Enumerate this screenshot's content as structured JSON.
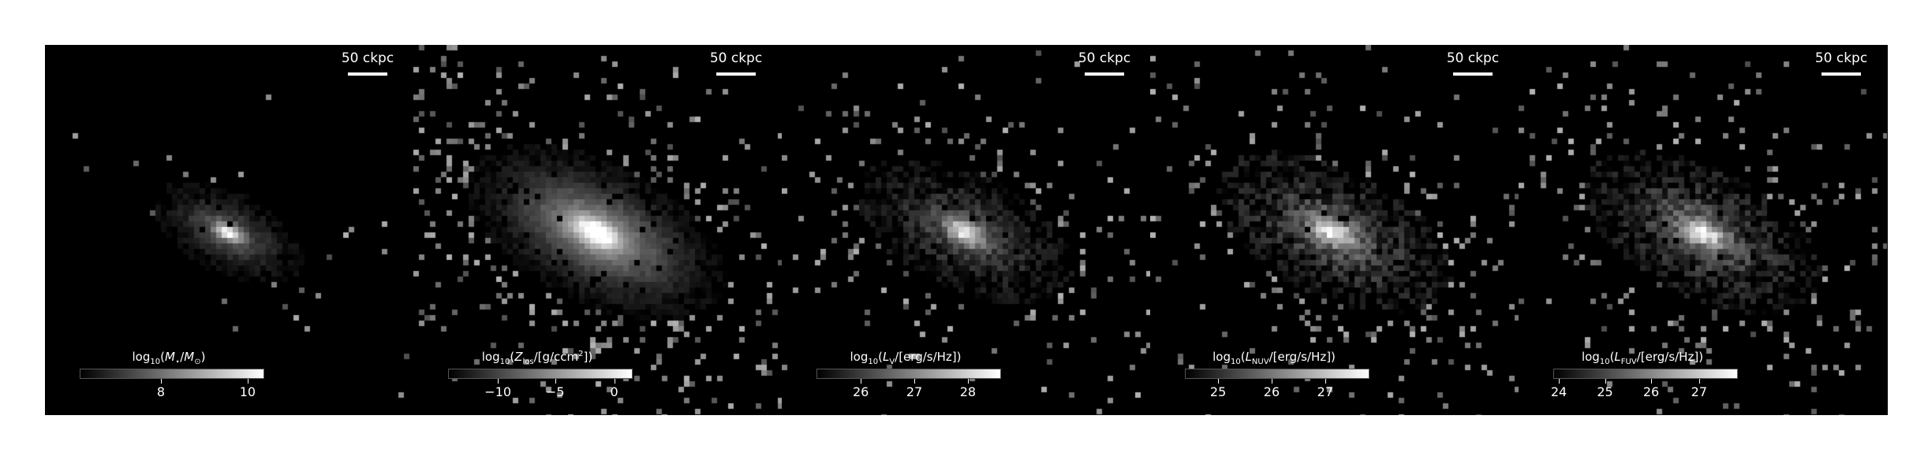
{
  "scalebar_label": "50 ckpc",
  "panels": [
    {
      "id": "stellar-mass",
      "label_parts": [
        "log",
        "10",
        "(",
        "M",
        "⋆",
        "/",
        "M",
        "⊙",
        ")"
      ],
      "ticks": [
        {
          "label": "8",
          "frac": 0.44
        },
        {
          "label": "10",
          "frac": 0.91
        }
      ],
      "image": {
        "spread": 0.14,
        "peak": 1.0,
        "noise": 0.12,
        "base": 0.35,
        "sparse": 0.02
      }
    },
    {
      "id": "metallicity",
      "label_parts": [
        "log",
        "10",
        "(",
        "Z",
        "los",
        "/[g/ccm",
        "2",
        "])"
      ],
      "ticks": [
        {
          "label": "−10",
          "frac": 0.27
        },
        {
          "label": "−5",
          "frac": 0.58
        },
        {
          "label": "0",
          "frac": 0.9
        }
      ],
      "image": {
        "spread": 0.24,
        "peak": 1.0,
        "noise": 0.1,
        "base": 0.55,
        "sparse": 0.2
      }
    },
    {
      "id": "lum-v",
      "label_parts": [
        "log",
        "10",
        "(",
        "L",
        "V",
        "/[erg/s/Hz])"
      ],
      "ticks": [
        {
          "label": "26",
          "frac": 0.24
        },
        {
          "label": "27",
          "frac": 0.53
        },
        {
          "label": "28",
          "frac": 0.82
        }
      ],
      "image": {
        "spread": 0.2,
        "peak": 1.0,
        "noise": 0.22,
        "base": 0.3,
        "sparse": 0.13
      }
    },
    {
      "id": "lum-nuv",
      "label_parts": [
        "log",
        "10",
        "(",
        "L",
        "NUV",
        "/[erg/s/Hz])"
      ],
      "ticks": [
        {
          "label": "25",
          "frac": 0.18
        },
        {
          "label": "26",
          "frac": 0.47
        },
        {
          "label": "27",
          "frac": 0.76
        }
      ],
      "image": {
        "spread": 0.22,
        "peak": 1.0,
        "noise": 0.3,
        "base": 0.35,
        "sparse": 0.15
      }
    },
    {
      "id": "lum-fuv",
      "label_parts": [
        "log",
        "10",
        "(",
        "L",
        "FUV",
        "/[erg/s/Hz])"
      ],
      "ticks": [
        {
          "label": "24",
          "frac": 0.03
        },
        {
          "label": "25",
          "frac": 0.28
        },
        {
          "label": "26",
          "frac": 0.53
        },
        {
          "label": "27",
          "frac": 0.79
        }
      ],
      "image": {
        "spread": 0.22,
        "peak": 1.0,
        "noise": 0.3,
        "base": 0.35,
        "sparse": 0.16
      }
    }
  ]
}
